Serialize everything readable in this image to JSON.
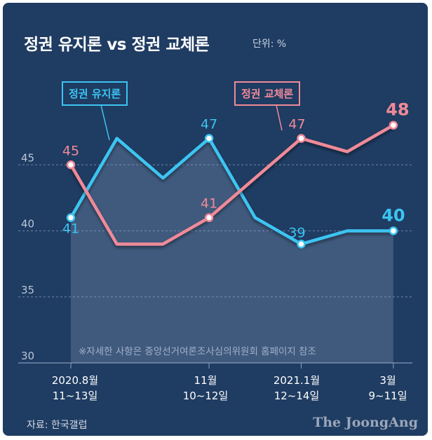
{
  "header": {
    "title": "정권 유지론 vs 정권 교체론",
    "unit": "단위: %"
  },
  "footer": {
    "source": "자료: 한국갤럽",
    "brand": "The JoongAng",
    "note": "※자세한 사항은 중앙선거여론조사심의위원회 홈페이지 참조"
  },
  "x_labels": [
    {
      "line1": "2020.8월",
      "line2": "11~13일"
    },
    {
      "line1": "11월",
      "line2": "10~12일"
    },
    {
      "line1": "2021.1월",
      "line2": "12~14일"
    },
    {
      "line1": "3월",
      "line2": "9~11일"
    }
  ],
  "chart_data": {
    "type": "line",
    "title": "정권 유지론 vs 정권 교체론",
    "ylabel": "단위: %",
    "ylim": [
      30,
      50
    ],
    "yticks": [
      30,
      35,
      40,
      45
    ],
    "x": [
      0,
      1,
      2,
      3,
      4,
      5,
      6,
      7
    ],
    "series": [
      {
        "name": "정권 유지론",
        "color": "#3cc4f2",
        "values": [
          41,
          47,
          44,
          47,
          41,
          39,
          40,
          40
        ],
        "labeled": [
          {
            "index": 0,
            "text": "41"
          },
          {
            "index": 3,
            "text": "47"
          },
          {
            "index": 5,
            "text": "39"
          },
          {
            "index": 7,
            "text": "40"
          }
        ]
      },
      {
        "name": "정권 교체론",
        "color": "#f08a98",
        "values": [
          45,
          39,
          39,
          41,
          44,
          47,
          46,
          48
        ],
        "labeled": [
          {
            "index": 0,
            "text": "45"
          },
          {
            "index": 3,
            "text": "41"
          },
          {
            "index": 5,
            "text": "47"
          },
          {
            "index": 7,
            "text": "48"
          }
        ]
      }
    ]
  }
}
